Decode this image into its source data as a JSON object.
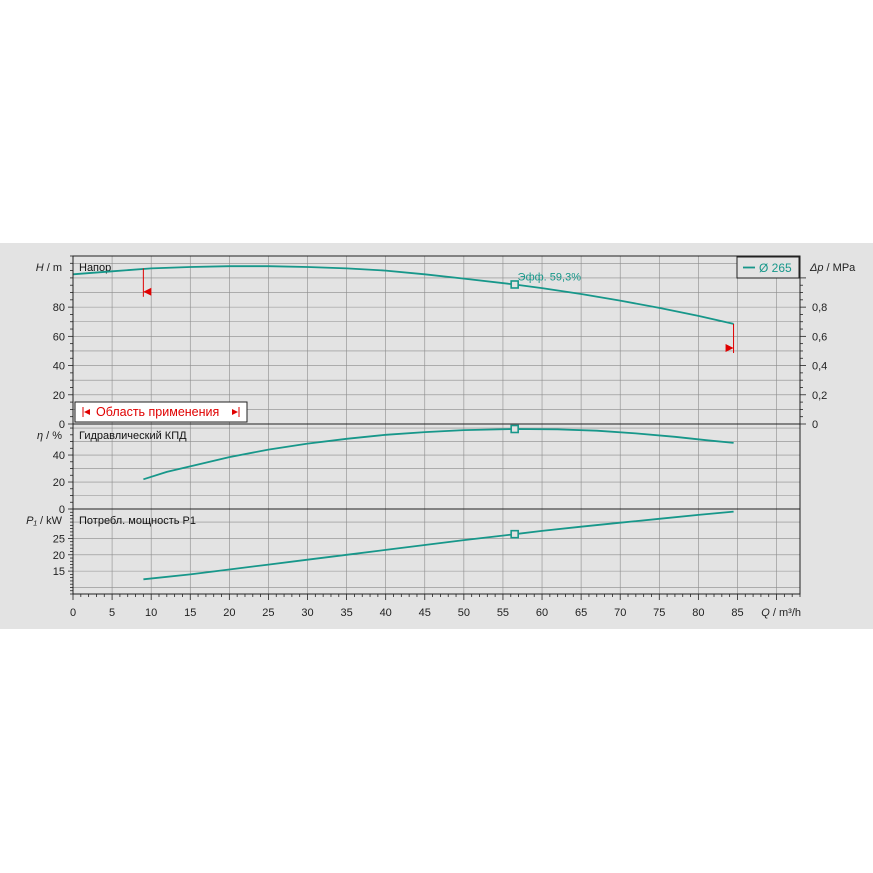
{
  "chart_data": {
    "type": "line",
    "x_axis": {
      "label_symbol": "Q",
      "label_unit": " / m³/h",
      "range": [
        0,
        93
      ],
      "ticks": [
        0,
        5,
        10,
        15,
        20,
        25,
        30,
        35,
        40,
        45,
        50,
        55,
        60,
        65,
        70,
        75,
        80,
        85
      ]
    },
    "legend": {
      "label": "Ø 265",
      "color": "#17978a",
      "position": "top-right"
    },
    "operating_point": {
      "q": 56.5
    },
    "grid": true,
    "panels": [
      {
        "id": "head",
        "title": "Напор",
        "y_label_symbol": "H",
        "y_label_unit": " / m",
        "y_range": [
          0,
          115
        ],
        "y_ticks": [
          0,
          20,
          40,
          60,
          80
        ],
        "secondary_axis": {
          "label_symbol": "Δp",
          "label_unit": " / MPa",
          "ticks": [
            0,
            0.2,
            0.4,
            0.6,
            0.8
          ],
          "tick_labels": [
            "0",
            "0,2",
            "0,4",
            "0,6",
            "0,8"
          ]
        },
        "series": [
          {
            "name": "Ø 265",
            "points": [
              [
                0,
                102.5
              ],
              [
                5,
                104.5
              ],
              [
                10,
                106.5
              ],
              [
                15,
                107.5
              ],
              [
                20,
                108
              ],
              [
                25,
                108
              ],
              [
                30,
                107.5
              ],
              [
                35,
                106.5
              ],
              [
                40,
                105
              ],
              [
                45,
                102.5
              ],
              [
                50,
                99.5
              ],
              [
                56.5,
                95.5
              ],
              [
                60,
                93
              ],
              [
                65,
                89
              ],
              [
                70,
                84.5
              ],
              [
                75,
                79.5
              ],
              [
                80,
                74
              ],
              [
                84.5,
                68.5
              ]
            ]
          }
        ],
        "operating_label": "Эфф.  59,3%",
        "operating_value": 95.5,
        "range_markers": [
          {
            "q": 9,
            "level": 90.5,
            "direction": "left"
          },
          {
            "q": 84.5,
            "level": 52,
            "direction": "right"
          }
        ],
        "application_range_label": "Область применения"
      },
      {
        "id": "efficiency",
        "title": "Гидравлический КПД",
        "y_label_symbol": "η",
        "y_label_unit": " / %",
        "y_range": [
          0,
          63
        ],
        "y_ticks": [
          0,
          20,
          40
        ],
        "series": [
          {
            "name": "Ø 265",
            "points": [
              [
                9,
                22
              ],
              [
                12,
                27.5
              ],
              [
                16,
                33
              ],
              [
                20,
                38.5
              ],
              [
                25,
                44
              ],
              [
                30,
                48.5
              ],
              [
                35,
                52
              ],
              [
                40,
                55
              ],
              [
                45,
                57
              ],
              [
                50,
                58.5
              ],
              [
                56.5,
                59.3
              ],
              [
                62,
                59
              ],
              [
                67,
                58
              ],
              [
                72,
                56
              ],
              [
                77,
                53.5
              ],
              [
                81,
                51
              ],
              [
                84.5,
                49
              ]
            ]
          }
        ],
        "operating_value": 59.3
      },
      {
        "id": "power",
        "title": "Потребл. мощность P1",
        "y_label_symbol": "P₁",
        "y_label_unit": " / kW",
        "y_range": [
          8,
          34
        ],
        "y_ticks": [
          15,
          20,
          25
        ],
        "series": [
          {
            "name": "Ø 265",
            "points": [
              [
                9,
                12.5
              ],
              [
                15,
                14
              ],
              [
                20,
                15.5
              ],
              [
                25,
                17
              ],
              [
                30,
                18.5
              ],
              [
                35,
                20
              ],
              [
                40,
                21.5
              ],
              [
                45,
                23
              ],
              [
                50,
                24.5
              ],
              [
                56.5,
                26.3
              ],
              [
                60,
                27.3
              ],
              [
                65,
                28.6
              ],
              [
                70,
                29.8
              ],
              [
                75,
                31
              ],
              [
                80,
                32.2
              ],
              [
                84.5,
                33.2
              ]
            ]
          }
        ],
        "operating_value": 26.3
      }
    ]
  }
}
